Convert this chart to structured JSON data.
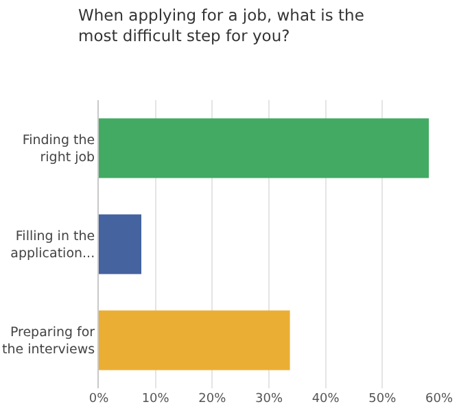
{
  "chart_data": {
    "type": "bar",
    "orientation": "horizontal",
    "title": "When applying for a job, what is the\nmost difficult step for you?",
    "categories": [
      "Finding the\nright job",
      "Filling in the\napplication...",
      "Preparing for\nthe interviews"
    ],
    "values": [
      58.2,
      7.5,
      33.7
    ],
    "colors": [
      "#43aa63",
      "#44639f",
      "#ebae34"
    ],
    "xlim": [
      0,
      60
    ],
    "xticks": [
      {
        "value": 0,
        "label": "0%"
      },
      {
        "value": 10,
        "label": "10%"
      },
      {
        "value": 20,
        "label": "20%"
      },
      {
        "value": 30,
        "label": "30%"
      },
      {
        "value": 40,
        "label": "40%"
      },
      {
        "value": 50,
        "label": "50%"
      },
      {
        "value": 60,
        "label": "60%"
      }
    ],
    "grid": "x"
  }
}
